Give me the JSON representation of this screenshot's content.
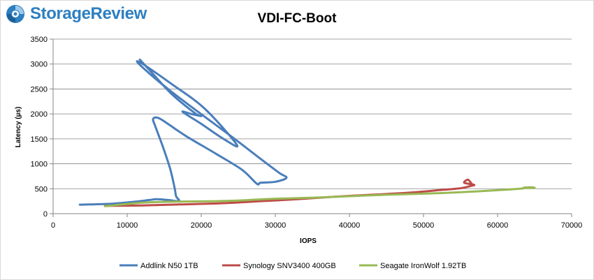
{
  "brand": {
    "name": "StorageReview",
    "icon": "storagereview-logo-icon",
    "color": "#2d7fc1"
  },
  "chart_data": {
    "type": "line",
    "title": "VDI-FC-Boot",
    "xlabel": "IOPS",
    "ylabel": "Latency (µs)",
    "xlim": [
      0,
      70000
    ],
    "ylim": [
      0,
      3500
    ],
    "xticks": [
      0,
      10000,
      20000,
      30000,
      40000,
      50000,
      60000,
      70000
    ],
    "yticks": [
      0,
      500,
      1000,
      1500,
      2000,
      2500,
      3000,
      3500
    ],
    "grid": "horizontal",
    "legend_position": "bottom",
    "series": [
      {
        "name": "Addlink N50 1TB",
        "color": "#4a7ebb",
        "points": [
          [
            3600,
            180
          ],
          [
            8000,
            200
          ],
          [
            11000,
            240
          ],
          [
            13000,
            275
          ],
          [
            14000,
            290
          ],
          [
            15500,
            275
          ],
          [
            17000,
            255
          ],
          [
            16600,
            350
          ],
          [
            16400,
            520
          ],
          [
            15800,
            900
          ],
          [
            14800,
            1350
          ],
          [
            13800,
            1750
          ],
          [
            13500,
            1900
          ],
          [
            14200,
            1920
          ],
          [
            15500,
            1800
          ],
          [
            18000,
            1550
          ],
          [
            22000,
            1200
          ],
          [
            25500,
            880
          ],
          [
            27500,
            600
          ],
          [
            28000,
            620
          ],
          [
            30000,
            640
          ],
          [
            31500,
            720
          ],
          [
            30500,
            820
          ],
          [
            28000,
            1100
          ],
          [
            24500,
            1500
          ],
          [
            19500,
            2050
          ],
          [
            15000,
            2560
          ],
          [
            11600,
            3000
          ],
          [
            12000,
            3010
          ],
          [
            16000,
            2600
          ],
          [
            20500,
            2100
          ],
          [
            24800,
            1380
          ],
          [
            23000,
            1500
          ],
          [
            20000,
            1800
          ],
          [
            17500,
            2040
          ],
          [
            18600,
            2000
          ],
          [
            20000,
            1960
          ],
          [
            19200,
            2010
          ],
          [
            16000,
            2400
          ],
          [
            13500,
            2800
          ],
          [
            11700,
            3090
          ]
        ]
      },
      {
        "name": "Synology SNV3400 400GB",
        "color": "#be4b48",
        "points": [
          [
            7000,
            155
          ],
          [
            12000,
            165
          ],
          [
            17000,
            185
          ],
          [
            23000,
            210
          ],
          [
            28000,
            250
          ],
          [
            33000,
            290
          ],
          [
            38000,
            340
          ],
          [
            43000,
            380
          ],
          [
            48000,
            420
          ],
          [
            52000,
            470
          ],
          [
            55000,
            510
          ],
          [
            56500,
            560
          ],
          [
            56800,
            580
          ],
          [
            55500,
            620
          ],
          [
            56000,
            680
          ],
          [
            56500,
            600
          ]
        ]
      },
      {
        "name": "Seagate IronWolf 1.92TB",
        "color": "#98b954",
        "points": [
          [
            7000,
            150
          ],
          [
            12000,
            220
          ],
          [
            16000,
            240
          ],
          [
            22000,
            250
          ],
          [
            26000,
            270
          ],
          [
            30000,
            300
          ],
          [
            35000,
            320
          ],
          [
            40000,
            350
          ],
          [
            45000,
            380
          ],
          [
            50000,
            400
          ],
          [
            55000,
            430
          ],
          [
            60000,
            470
          ],
          [
            63000,
            500
          ],
          [
            64000,
            520
          ],
          [
            65000,
            515
          ],
          [
            63500,
            520
          ],
          [
            64500,
            530
          ],
          [
            65000,
            520
          ]
        ]
      }
    ]
  }
}
